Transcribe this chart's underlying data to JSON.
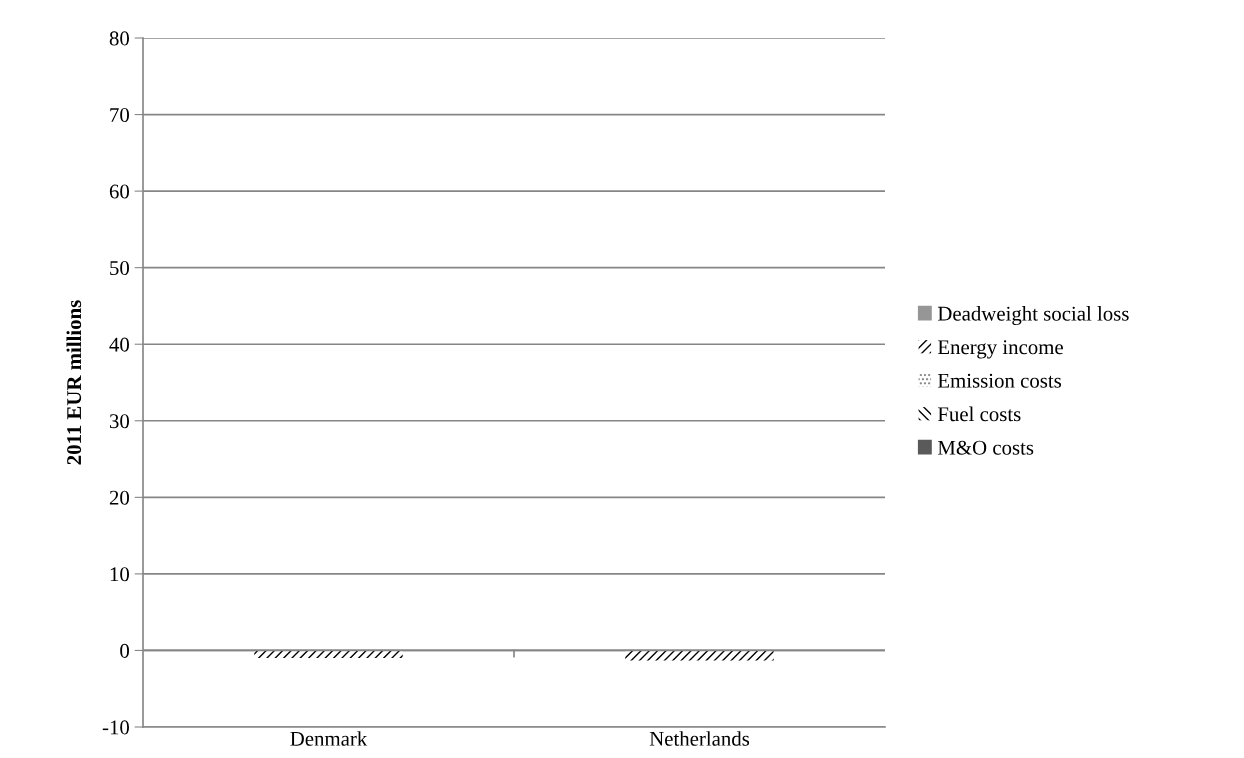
{
  "chart_data": {
    "type": "bar",
    "stacked": true,
    "ylabel": "2011 EUR millions",
    "categories": [
      "Denmark",
      "Netherlands"
    ],
    "series": [
      {
        "name": "Deadweight social loss",
        "color": "#969696",
        "values": [
          0,
          0
        ]
      },
      {
        "name": "Energy income",
        "color": "#000000",
        "values": [
          -1.0,
          -1.3
        ]
      },
      {
        "name": "Emission costs",
        "color": "#808080",
        "values": [
          0,
          0
        ]
      },
      {
        "name": "Fuel costs",
        "color": "#000000",
        "values": [
          0,
          0
        ]
      },
      {
        "name": "M&O costs",
        "color": "#5a5a5a",
        "values": [
          0,
          0
        ]
      }
    ],
    "ylim": [
      -10,
      80
    ],
    "yticks": [
      -10,
      0,
      10,
      20,
      30,
      40,
      50,
      60,
      70,
      80
    ],
    "grid": "y",
    "legend": "right"
  }
}
